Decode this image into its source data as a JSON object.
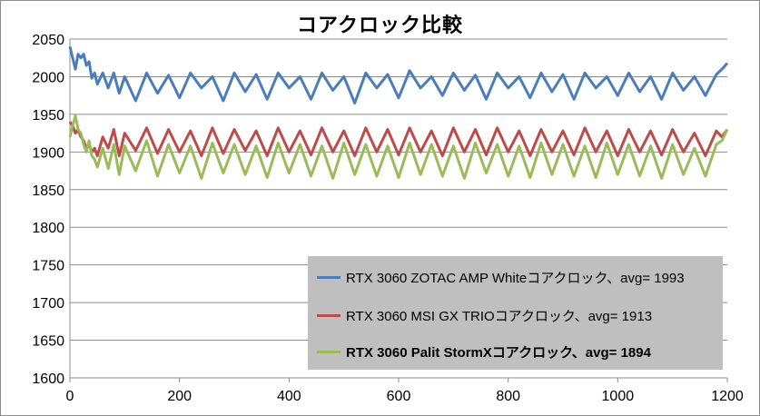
{
  "chart_data": {
    "type": "line",
    "title": "コアクロック比較",
    "xlabel": "",
    "ylabel": "",
    "xlim": [
      0,
      1200
    ],
    "ylim": [
      1600,
      2050
    ],
    "xticks": [
      "0",
      "200",
      "400",
      "600",
      "800",
      "1000",
      "1200"
    ],
    "yticks": [
      "1600",
      "1650",
      "1700",
      "1750",
      "1800",
      "1850",
      "1900",
      "1950",
      "2000",
      "2050"
    ],
    "grid": "horizontal",
    "legend": "bottom-right",
    "series": [
      {
        "name": "RTX 3060 ZOTAC AMP Whiteコアクロック、avg= 1993",
        "color": "#4a7ebb",
        "bold": false,
        "x": [
          0,
          5,
          10,
          15,
          20,
          25,
          30,
          35,
          40,
          45,
          50,
          60,
          70,
          80,
          90,
          100,
          120,
          140,
          160,
          180,
          200,
          220,
          240,
          260,
          280,
          300,
          320,
          340,
          360,
          380,
          400,
          420,
          440,
          460,
          480,
          500,
          520,
          540,
          560,
          580,
          600,
          620,
          640,
          660,
          680,
          700,
          720,
          740,
          760,
          780,
          800,
          820,
          840,
          860,
          880,
          900,
          920,
          940,
          960,
          980,
          1000,
          1020,
          1040,
          1060,
          1080,
          1100,
          1120,
          1140,
          1160,
          1180,
          1190,
          1200
        ],
        "values": [
          2040,
          2025,
          2010,
          2030,
          2025,
          2030,
          2015,
          2020,
          1998,
          2005,
          1990,
          2005,
          1985,
          2005,
          1978,
          2000,
          1968,
          2005,
          1978,
          2002,
          1972,
          2005,
          1985,
          2000,
          1968,
          2005,
          1980,
          2003,
          1970,
          2005,
          1985,
          2000,
          1970,
          2005,
          1982,
          2000,
          1965,
          2005,
          1985,
          2003,
          1972,
          2008,
          1985,
          2000,
          1975,
          2005,
          1982,
          2002,
          1970,
          2005,
          1985,
          2000,
          1972,
          2005,
          1980,
          2003,
          1970,
          2005,
          1985,
          2000,
          1975,
          2005,
          1980,
          2000,
          1970,
          2005,
          1982,
          2000,
          1975,
          2003,
          2010,
          2018
        ]
      },
      {
        "name": "RTX 3060 MSI GX TRIOコアクロック、avg= 1913",
        "color": "#be4b48",
        "bold": false,
        "x": [
          0,
          5,
          10,
          15,
          20,
          25,
          30,
          35,
          40,
          45,
          50,
          60,
          70,
          80,
          90,
          100,
          120,
          140,
          160,
          180,
          200,
          220,
          240,
          260,
          280,
          300,
          320,
          340,
          360,
          380,
          400,
          420,
          440,
          460,
          480,
          500,
          520,
          540,
          560,
          580,
          600,
          620,
          640,
          660,
          680,
          700,
          720,
          740,
          760,
          780,
          800,
          820,
          840,
          860,
          880,
          900,
          920,
          940,
          960,
          980,
          1000,
          1020,
          1040,
          1060,
          1080,
          1100,
          1120,
          1140,
          1160,
          1180,
          1190,
          1200
        ],
        "values": [
          1940,
          1935,
          1925,
          1930,
          1920,
          1915,
          1905,
          1910,
          1900,
          1905,
          1895,
          1920,
          1905,
          1930,
          1895,
          1925,
          1902,
          1932,
          1898,
          1930,
          1900,
          1928,
          1895,
          1932,
          1898,
          1930,
          1902,
          1928,
          1895,
          1932,
          1900,
          1928,
          1896,
          1932,
          1900,
          1928,
          1895,
          1932,
          1900,
          1930,
          1896,
          1932,
          1900,
          1928,
          1895,
          1932,
          1900,
          1930,
          1896,
          1932,
          1900,
          1928,
          1895,
          1930,
          1900,
          1928,
          1896,
          1932,
          1900,
          1928,
          1895,
          1930,
          1900,
          1928,
          1896,
          1930,
          1900,
          1925,
          1895,
          1928,
          1920,
          1930
        ]
      },
      {
        "name": "RTX 3060 Palit StormXコアクロック、avg= 1894",
        "color": "#9bbb59",
        "bold": true,
        "x": [
          0,
          5,
          10,
          15,
          20,
          25,
          30,
          35,
          40,
          45,
          50,
          60,
          70,
          80,
          90,
          100,
          120,
          140,
          160,
          180,
          200,
          220,
          240,
          260,
          280,
          300,
          320,
          340,
          360,
          380,
          400,
          420,
          440,
          460,
          480,
          500,
          520,
          540,
          560,
          580,
          600,
          620,
          640,
          660,
          680,
          700,
          720,
          740,
          760,
          780,
          800,
          820,
          840,
          860,
          880,
          900,
          920,
          940,
          960,
          980,
          1000,
          1020,
          1040,
          1060,
          1080,
          1100,
          1120,
          1140,
          1160,
          1180,
          1190,
          1200
        ],
        "values": [
          1920,
          1935,
          1948,
          1930,
          1925,
          1910,
          1900,
          1915,
          1895,
          1890,
          1880,
          1905,
          1878,
          1910,
          1870,
          1908,
          1875,
          1915,
          1868,
          1910,
          1872,
          1908,
          1865,
          1912,
          1872,
          1910,
          1870,
          1908,
          1866,
          1912,
          1872,
          1910,
          1868,
          1908,
          1865,
          1912,
          1870,
          1910,
          1868,
          1908,
          1866,
          1912,
          1870,
          1910,
          1868,
          1908,
          1865,
          1912,
          1872,
          1910,
          1868,
          1908,
          1866,
          1912,
          1870,
          1910,
          1868,
          1908,
          1866,
          1912,
          1870,
          1910,
          1868,
          1908,
          1865,
          1910,
          1870,
          1905,
          1868,
          1910,
          1915,
          1930
        ]
      }
    ]
  }
}
